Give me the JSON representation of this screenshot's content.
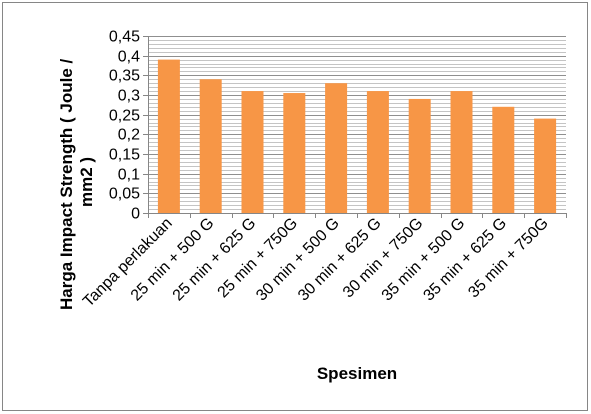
{
  "chart_data": {
    "type": "bar",
    "xlabel": "Spesimen",
    "ylabel": [
      "Harga Impact Strength ( Joule /",
      "mm2 )"
    ],
    "categories": [
      "Tanpa perlakuan",
      "25 min + 500 G",
      "25 min + 625 G",
      "25 min + 750G",
      "30 min + 500 G",
      "30 min + 625 G",
      "30 min + 750G",
      "35 min + 500 G",
      "35 min + 625 G",
      "35 min + 750G"
    ],
    "values": [
      0.39,
      0.34,
      0.31,
      0.305,
      0.33,
      0.31,
      0.29,
      0.31,
      0.27,
      0.24
    ],
    "ylim": [
      0,
      0.45
    ],
    "yticks": [
      0,
      0.05,
      0.1,
      0.15,
      0.2,
      0.25,
      0.3,
      0.35,
      0.4,
      0.45
    ],
    "ytick_labels": [
      "0",
      "0,05",
      "0,1",
      "0,15",
      "0,2",
      "0,25",
      "0,3",
      "0,35",
      "0,4",
      "0,45"
    ],
    "minor_grid_step": 0.01,
    "grid": true,
    "legend": "none",
    "bar_color": "#F79646"
  }
}
